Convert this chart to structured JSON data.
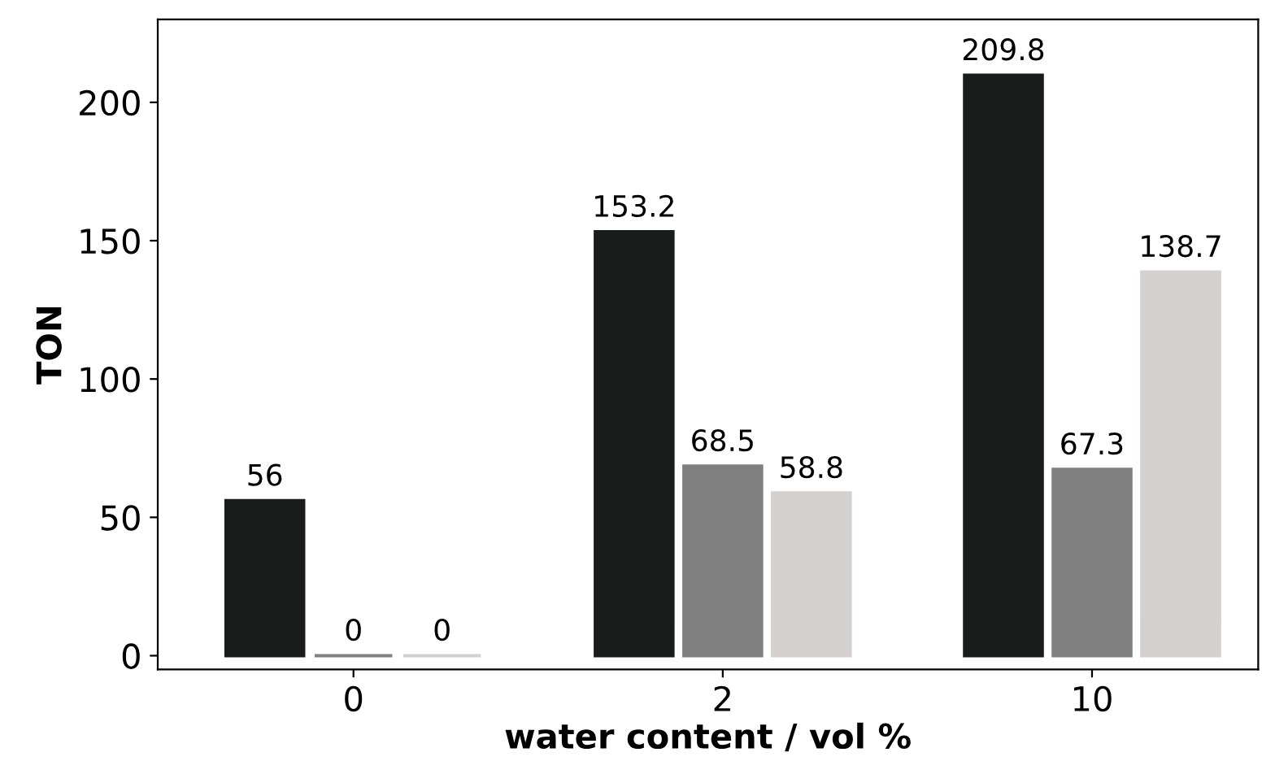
{
  "chart_data": {
    "type": "bar",
    "xlabel": "water content / vol %",
    "ylabel": "TON",
    "categories": [
      "0",
      "2",
      "10"
    ],
    "series": [
      {
        "color": "#1a1c1b",
        "values": [
          56,
          153.2,
          209.8
        ]
      },
      {
        "color": "#808080",
        "values": [
          0,
          68.5,
          67.3
        ]
      },
      {
        "color": "#d3d0cf",
        "values": [
          0,
          58.8,
          138.7
        ]
      }
    ],
    "data_labels": true,
    "ylim": [
      -5,
      230
    ],
    "yticks": [
      0,
      50,
      100,
      150,
      200
    ],
    "grid": false,
    "legend": false
  }
}
